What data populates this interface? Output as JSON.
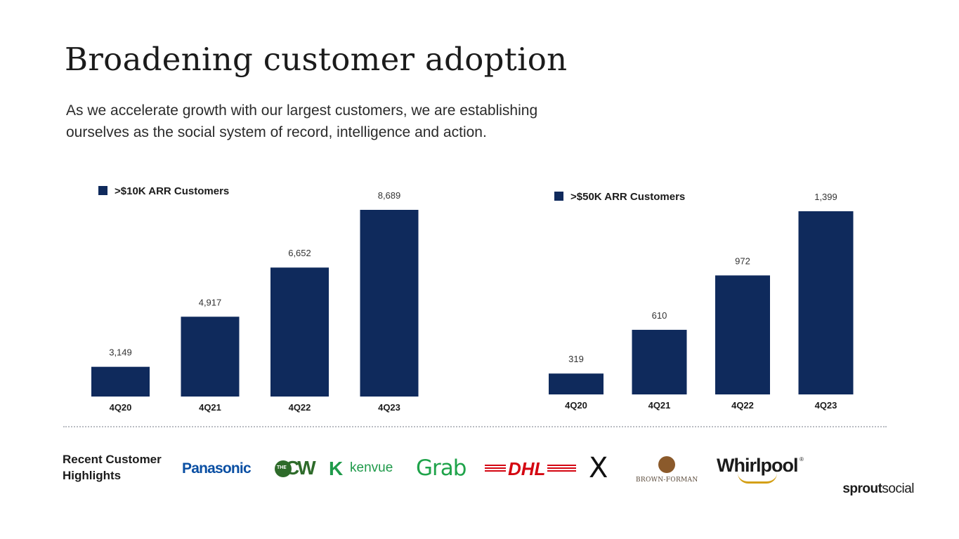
{
  "header": {
    "title": "Broadening customer adoption",
    "subtitle": "As we accelerate growth with our largest customers, we are establishing ourselves as the social system of record, intelligence and action."
  },
  "chart_data": [
    {
      "type": "bar",
      "title": ">$10K ARR Customers",
      "legend": ">$10K ARR Customers",
      "categories": [
        "4Q20",
        "4Q21",
        "4Q22",
        "4Q23"
      ],
      "values": [
        3149,
        4917,
        6652,
        8689
      ],
      "value_labels": [
        "3,149",
        "4,917",
        "6,652",
        "8,689"
      ],
      "ylim": [
        2100,
        8689
      ],
      "color": "#0f2a5c"
    },
    {
      "type": "bar",
      "title": ">$50K ARR Customers",
      "legend": ">$50K ARR Customers",
      "categories": [
        "4Q20",
        "4Q21",
        "4Q22",
        "4Q23"
      ],
      "values": [
        319,
        610,
        972,
        1399
      ],
      "value_labels": [
        "319",
        "610",
        "972",
        "1,399"
      ],
      "ylim": [
        180,
        1399
      ],
      "color": "#0f2a5c"
    }
  ],
  "footer": {
    "highlights_line1": "Recent Customer",
    "highlights_line2": "Highlights",
    "logos": {
      "panasonic": "Panasonic",
      "cw_small": "THE",
      "cw": "CW",
      "kenvue_mark": "K",
      "kenvue": "kenvue",
      "grab": "Grab",
      "dhl": "DHL",
      "x": "X",
      "brown_forman": "BROWN-FORMAN",
      "whirlpool": "Whirlpool",
      "whirlpool_reg": "®"
    },
    "brand_part1": "sprout",
    "brand_part2": "social"
  },
  "colors": {
    "bar": "#0f2a5c",
    "panasonic": "#0a4fa3",
    "cw": "#2e6b2a",
    "kenvue": "#1f9a4a",
    "grab": "#1fa34a",
    "dhl": "#d40511",
    "whirlpool_swoosh": "#d4a017",
    "brown_forman": "#8b5a2b"
  }
}
